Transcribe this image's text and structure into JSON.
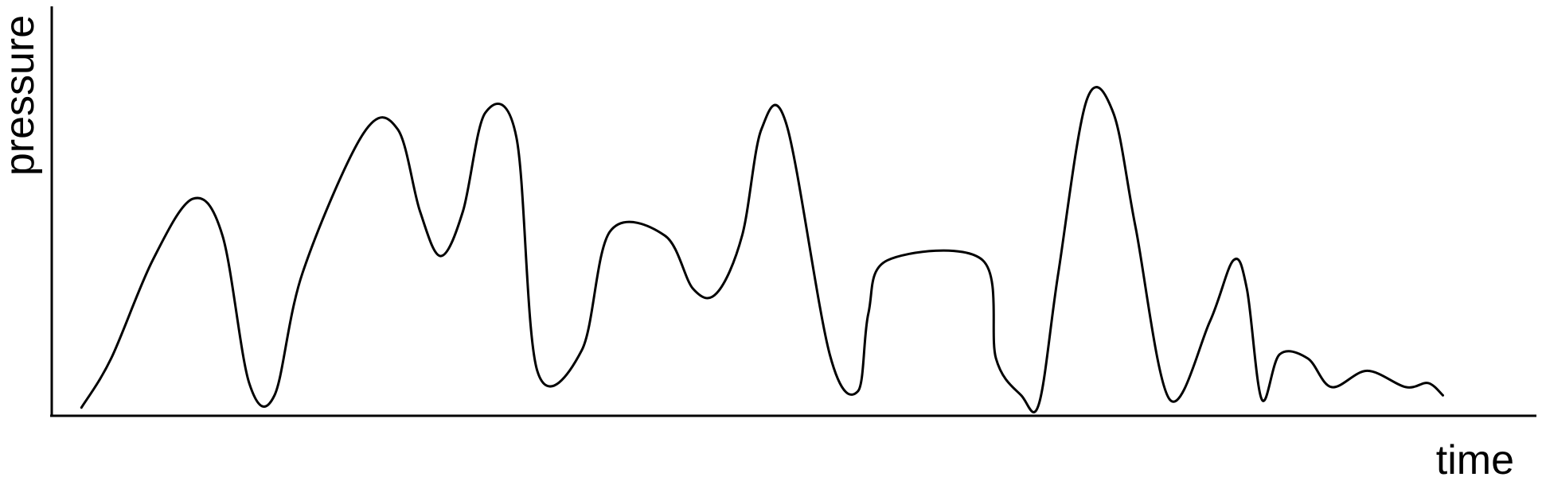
{
  "chart_data": {
    "type": "line",
    "title": "",
    "xlabel": "time",
    "ylabel": "pressure",
    "grid": false,
    "legend": false,
    "xlim": [
      0,
      100
    ],
    "ylim": [
      0,
      100
    ],
    "series": [
      {
        "color": "#000000",
        "x": [
          2.0,
          4.0,
          6.8,
          9.5,
          11.5,
          13.3,
          15.0,
          16.9,
          21.0,
          23.3,
          24.8,
          26.2,
          27.7,
          29.2,
          31.3,
          32.7,
          35.7,
          37.6,
          41.3,
          43.2,
          44.8,
          46.5,
          47.8,
          49.5,
          52.4,
          54.3,
          55.0,
          56.3,
          62.7,
          63.6,
          65.3,
          66.5,
          67.8,
          69.7,
          71.5,
          73.0,
          75.3,
          78.0,
          79.6,
          80.5,
          81.5,
          82.7,
          84.6,
          86.2,
          88.6,
          91.2,
          92.7,
          93.7
        ],
        "y": [
          2,
          14,
          38,
          53,
          44,
          8,
          5,
          35,
          69,
          70,
          50,
          39,
          50,
          74,
          68,
          11,
          16,
          45,
          44,
          31,
          30,
          44,
          70,
          71,
          15,
          6,
          25,
          38,
          38,
          14,
          5,
          3,
          35,
          77,
          74,
          46,
          4,
          23,
          38,
          31,
          4,
          15,
          14,
          7,
          11,
          7,
          8,
          5
        ]
      }
    ]
  }
}
